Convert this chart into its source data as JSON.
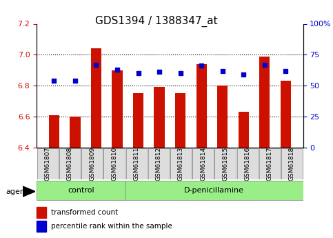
{
  "title": "GDS1394 / 1388347_at",
  "samples": [
    "GSM61807",
    "GSM61808",
    "GSM61809",
    "GSM61810",
    "GSM61811",
    "GSM61812",
    "GSM61813",
    "GSM61814",
    "GSM61815",
    "GSM61816",
    "GSM61817",
    "GSM61818"
  ],
  "bar_values": [
    6.61,
    6.6,
    7.04,
    6.9,
    6.75,
    6.79,
    6.75,
    6.94,
    6.8,
    6.63,
    6.99,
    6.83
  ],
  "dot_values": [
    54,
    54,
    67,
    63,
    60,
    61,
    60,
    66,
    62,
    59,
    67,
    62
  ],
  "ylim_left": [
    6.4,
    7.2
  ],
  "ylim_right": [
    0,
    100
  ],
  "yticks_left": [
    6.4,
    6.6,
    6.8,
    7.0,
    7.2
  ],
  "yticks_right": [
    0,
    25,
    50,
    75,
    100
  ],
  "ytick_labels_right": [
    "0",
    "25",
    "50",
    "75",
    "100%"
  ],
  "bar_color": "#cc1100",
  "dot_color": "#0000cc",
  "bar_bottom": 6.4,
  "groups": [
    {
      "label": "control",
      "start": 0,
      "end": 4
    },
    {
      "label": "D-penicillamine",
      "start": 4,
      "end": 12
    }
  ],
  "group_color": "#99ee88",
  "agent_label": "agent",
  "legend_items": [
    {
      "color": "#cc1100",
      "label": "transformed count"
    },
    {
      "color": "#0000cc",
      "label": "percentile rank within the sample"
    }
  ],
  "grid_color": "black",
  "title_fontsize": 11,
  "tick_label_color_left": "#cc1100",
  "tick_label_color_right": "#0000cc"
}
